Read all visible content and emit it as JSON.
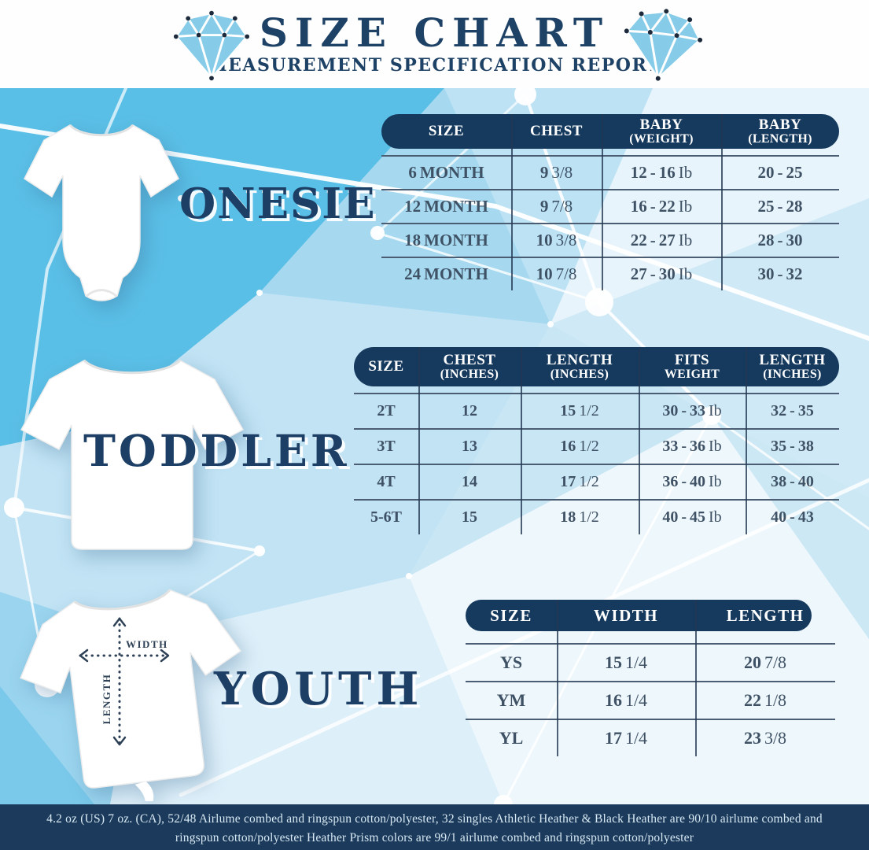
{
  "header": {
    "title": "SIZE CHART",
    "subtitle": "MEASUREMENT SPECIFICATION REPORT",
    "left_icon": "diamond-icon",
    "right_icon": "diamond-icon"
  },
  "sections": [
    {
      "label": "ONESIE",
      "table": {
        "headers": [
          [
            "SIZE"
          ],
          [
            "CHEST"
          ],
          [
            "BABY",
            "(WEIGHT)"
          ],
          [
            "BABY",
            "(LENGTH)"
          ]
        ],
        "rows": [
          [
            "6 MONTH",
            "9 3/8",
            "12 - 16 Ib",
            "20 - 25"
          ],
          [
            "12 MONTH",
            "9 7/8",
            "16 - 22 Ib",
            "25 - 28"
          ],
          [
            "18 MONTH",
            "10 3/8",
            "22 - 27 Ib",
            "28 - 30"
          ],
          [
            "24 MONTH",
            "10 7/8",
            "27 - 30 Ib",
            "30 - 32"
          ]
        ]
      }
    },
    {
      "label": "TODDLER",
      "table": {
        "headers": [
          [
            "SIZE"
          ],
          [
            "CHEST",
            "(INCHES)"
          ],
          [
            "LENGTH",
            "(INCHES)"
          ],
          [
            "FITS",
            "WEIGHT"
          ],
          [
            "LENGTH",
            "(INCHES)"
          ]
        ],
        "rows": [
          [
            "2T",
            "12",
            "15 1/2",
            "30 - 33 Ib",
            "32 - 35"
          ],
          [
            "3T",
            "13",
            "16 1/2",
            "33 - 36 Ib",
            "35 - 38"
          ],
          [
            "4T",
            "14",
            "17 1/2",
            "36 - 40 Ib",
            "38 - 40"
          ],
          [
            "5-6T",
            "15",
            "18 1/2",
            "40 - 45 Ib",
            "40 - 43"
          ]
        ]
      }
    },
    {
      "label": "YOUTH",
      "table": {
        "headers": [
          [
            "SIZE"
          ],
          [
            "WIDTH"
          ],
          [
            "LENGTH"
          ]
        ],
        "rows": [
          [
            "YS",
            "15 1/4",
            "20 7/8"
          ],
          [
            "YM",
            "16 1/4",
            "22 1/8"
          ],
          [
            "YL",
            "17 1/4",
            "23 3/8"
          ]
        ]
      }
    }
  ],
  "measure_labels": {
    "width": "WIDTH",
    "length": "LENGTH"
  },
  "footer": {
    "line1": "4.2 oz (US) 7 oz. (CA), 52/48 Airlume combed and ringspun cotton/polyester, 32 singles Athletic Heather & Black Heather are 90/10 airlume combed and",
    "line2": "ringspun cotton/polyester Heather Prism colors are 99/1 airlume combed and ringspun cotton/polyester"
  },
  "colors": {
    "navy": "#16395e",
    "title_navy": "#1e4166",
    "cell_text": "#3f5265",
    "footer_bg": "#1b3a5c",
    "diamond_blue": "#86cce9",
    "bg_blue": "#c9e6f5"
  }
}
